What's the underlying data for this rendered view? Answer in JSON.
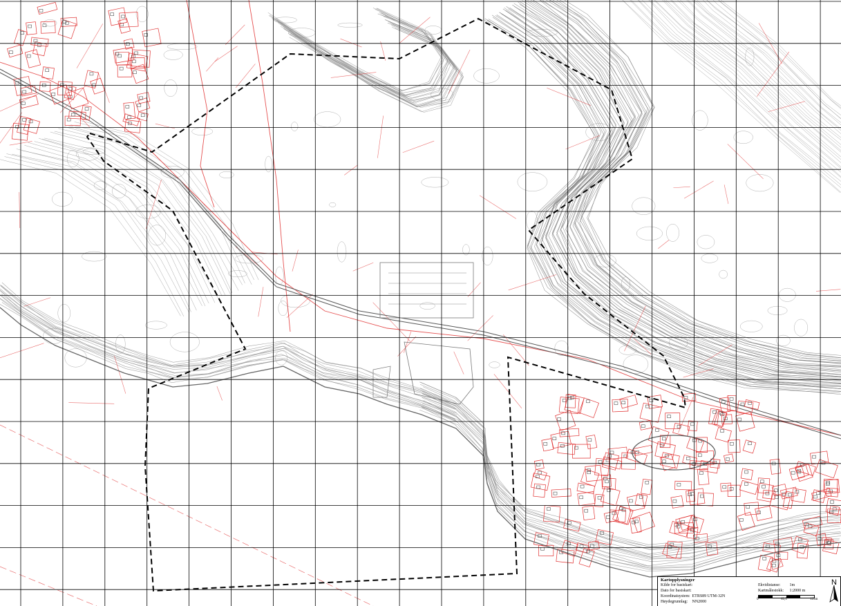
{
  "map": {
    "grid_cols": 20,
    "grid_rows": 14,
    "colors": {
      "contour": "#8a8a8a",
      "contour_dense": "#6e6e6e",
      "property": "#e03030",
      "grid": "#000000",
      "boundary": "#000000",
      "background": "#ffffff"
    },
    "features": [
      "grid",
      "contours",
      "road",
      "railway",
      "plan-boundary",
      "residential-plots",
      "shoreline"
    ]
  },
  "legend": {
    "title": "Kartopplysninger",
    "left_rows": [
      {
        "label": "Kilde for basiskart:",
        "value": ""
      },
      {
        "label": "Dato for basiskart:",
        "value": ""
      },
      {
        "label": "Koordinatsystem:",
        "value": "ETRS89 UTM-32N"
      },
      {
        "label": "Høydegrunnlag:",
        "value": "NN2000"
      }
    ],
    "right_rows": [
      {
        "label": "Ekvidistanse:",
        "value": "1m"
      },
      {
        "label": "Kartmålestokk:",
        "value": "1:2000 m"
      }
    ],
    "scale_ticks": [
      "0",
      "62,5",
      "125m"
    ],
    "north_label": "N"
  }
}
